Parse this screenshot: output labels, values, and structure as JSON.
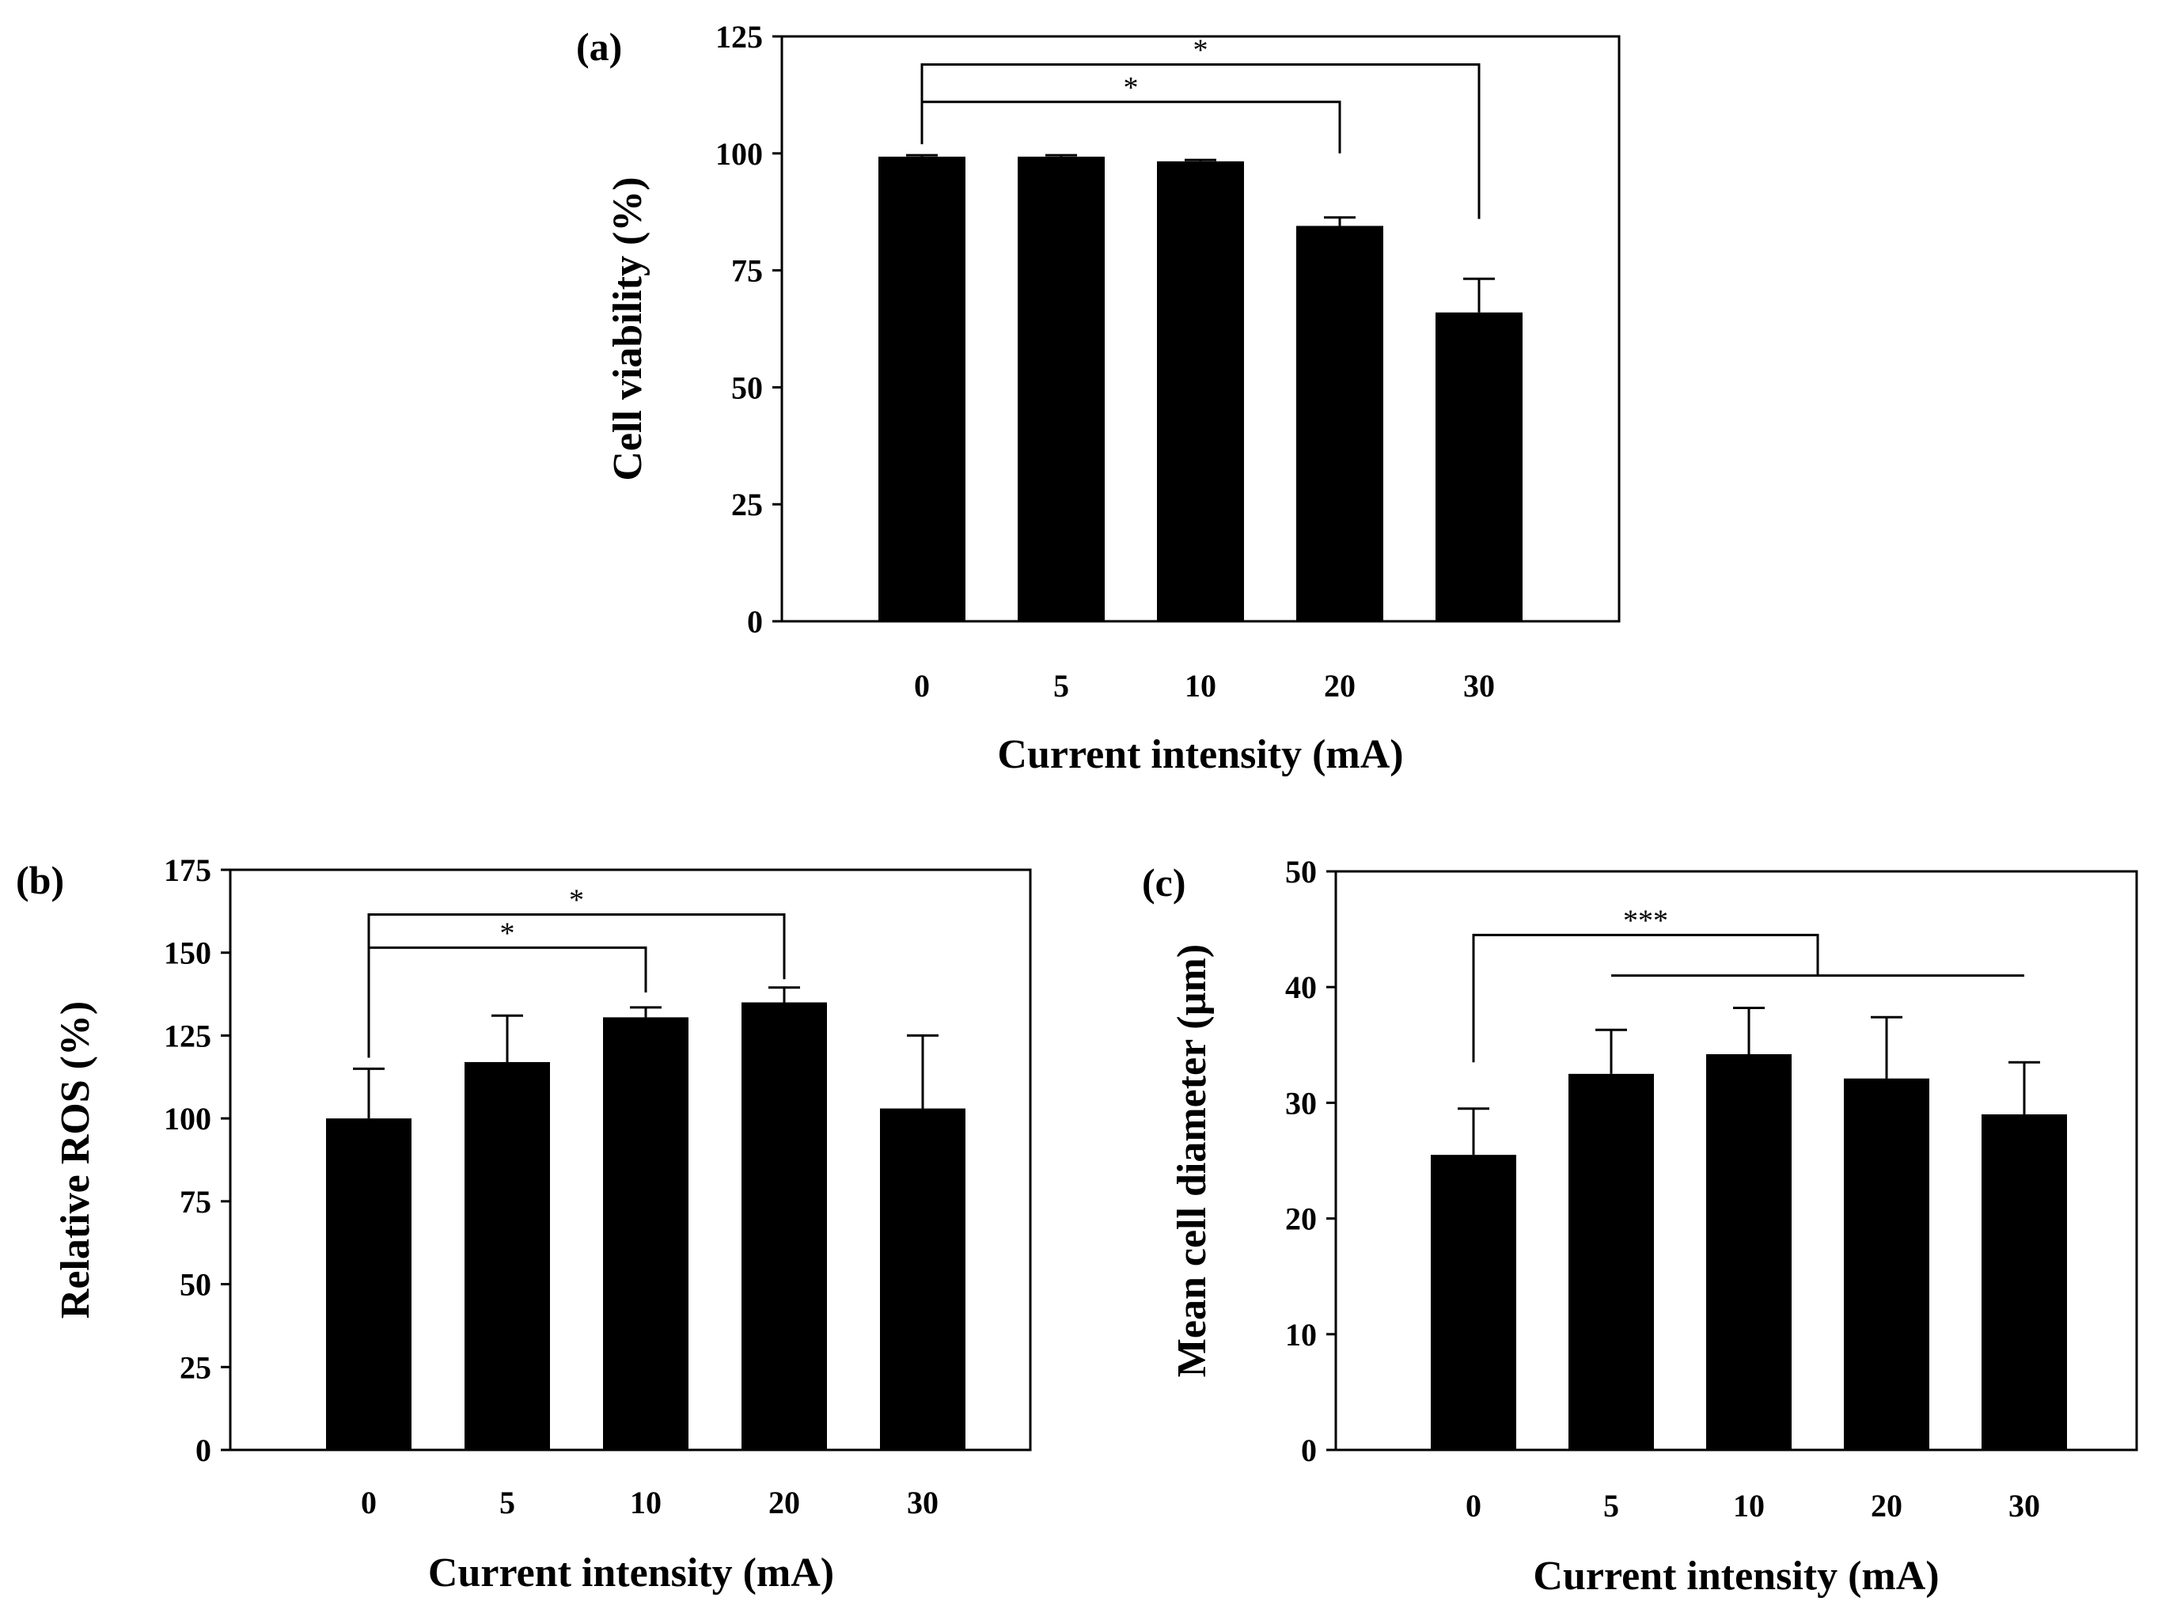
{
  "figure_colors": {
    "bar": "#000000",
    "background": "#ffffff"
  },
  "chart_data": [
    {
      "id": "a",
      "type": "bar",
      "panel_label": "(a)",
      "title": "",
      "xlabel": "Current intensity (mA)",
      "ylabel": "Cell viability (%)",
      "categories": [
        "0",
        "5",
        "10",
        "20",
        "30"
      ],
      "values": [
        99.3,
        99.3,
        98.3,
        84.5,
        66
      ],
      "errors": [
        0.3,
        0.3,
        0.3,
        1.8,
        7.2
      ],
      "ylim": [
        0,
        125
      ],
      "yticks": [
        "0",
        "25",
        "50",
        "75",
        "100",
        "125"
      ],
      "yticks_values": [
        0,
        25,
        50,
        75,
        100,
        125
      ],
      "significance": [
        {
          "from": 0,
          "to": 3,
          "label": "*",
          "level": 111,
          "end": 100
        },
        {
          "from": 0,
          "to": 4,
          "label": "*",
          "level": 119,
          "end": 86
        }
      ],
      "group_significance": []
    },
    {
      "id": "b",
      "type": "bar",
      "panel_label": "(b)",
      "title": "",
      "xlabel": "Current intensity (mA)",
      "ylabel": "Relative ROS (%)",
      "categories": [
        "0",
        "5",
        "10",
        "20",
        "30"
      ],
      "values": [
        100,
        117,
        130.5,
        135,
        103
      ],
      "errors": [
        15,
        14,
        3,
        4.5,
        22
      ],
      "ylim": [
        0,
        175
      ],
      "yticks": [
        "0",
        "25",
        "50",
        "75",
        "100",
        "125",
        "150",
        "175"
      ],
      "yticks_values": [
        0,
        25,
        50,
        75,
        100,
        125,
        150,
        175
      ],
      "significance": [
        {
          "from": 0,
          "to": 2,
          "label": "*",
          "level": 151.5,
          "end": 138
        },
        {
          "from": 0,
          "to": 3,
          "label": "*",
          "level": 161.5,
          "end": 142
        }
      ],
      "group_significance": []
    },
    {
      "id": "c",
      "type": "bar",
      "panel_label": "(c)",
      "title": "",
      "xlabel": "Current intensity (mA)",
      "ylabel": "Mean cell diameter (µm)",
      "categories": [
        "0",
        "5",
        "10",
        "20",
        "30"
      ],
      "values": [
        25.5,
        32.5,
        34.2,
        32.1,
        29
      ],
      "errors": [
        4,
        3.8,
        4,
        5.3,
        4.5
      ],
      "ylim": [
        0,
        50
      ],
      "yticks": [
        "0",
        "10",
        "20",
        "30",
        "40",
        "50"
      ],
      "yticks_values": [
        0,
        10,
        20,
        30,
        40,
        50
      ],
      "significance": [],
      "group_significance": [
        {
          "control": 0,
          "group_from": 1,
          "group_to": 4,
          "label": "***",
          "level": 44.5,
          "group_level": 41,
          "control_end": 33.5
        }
      ]
    }
  ]
}
